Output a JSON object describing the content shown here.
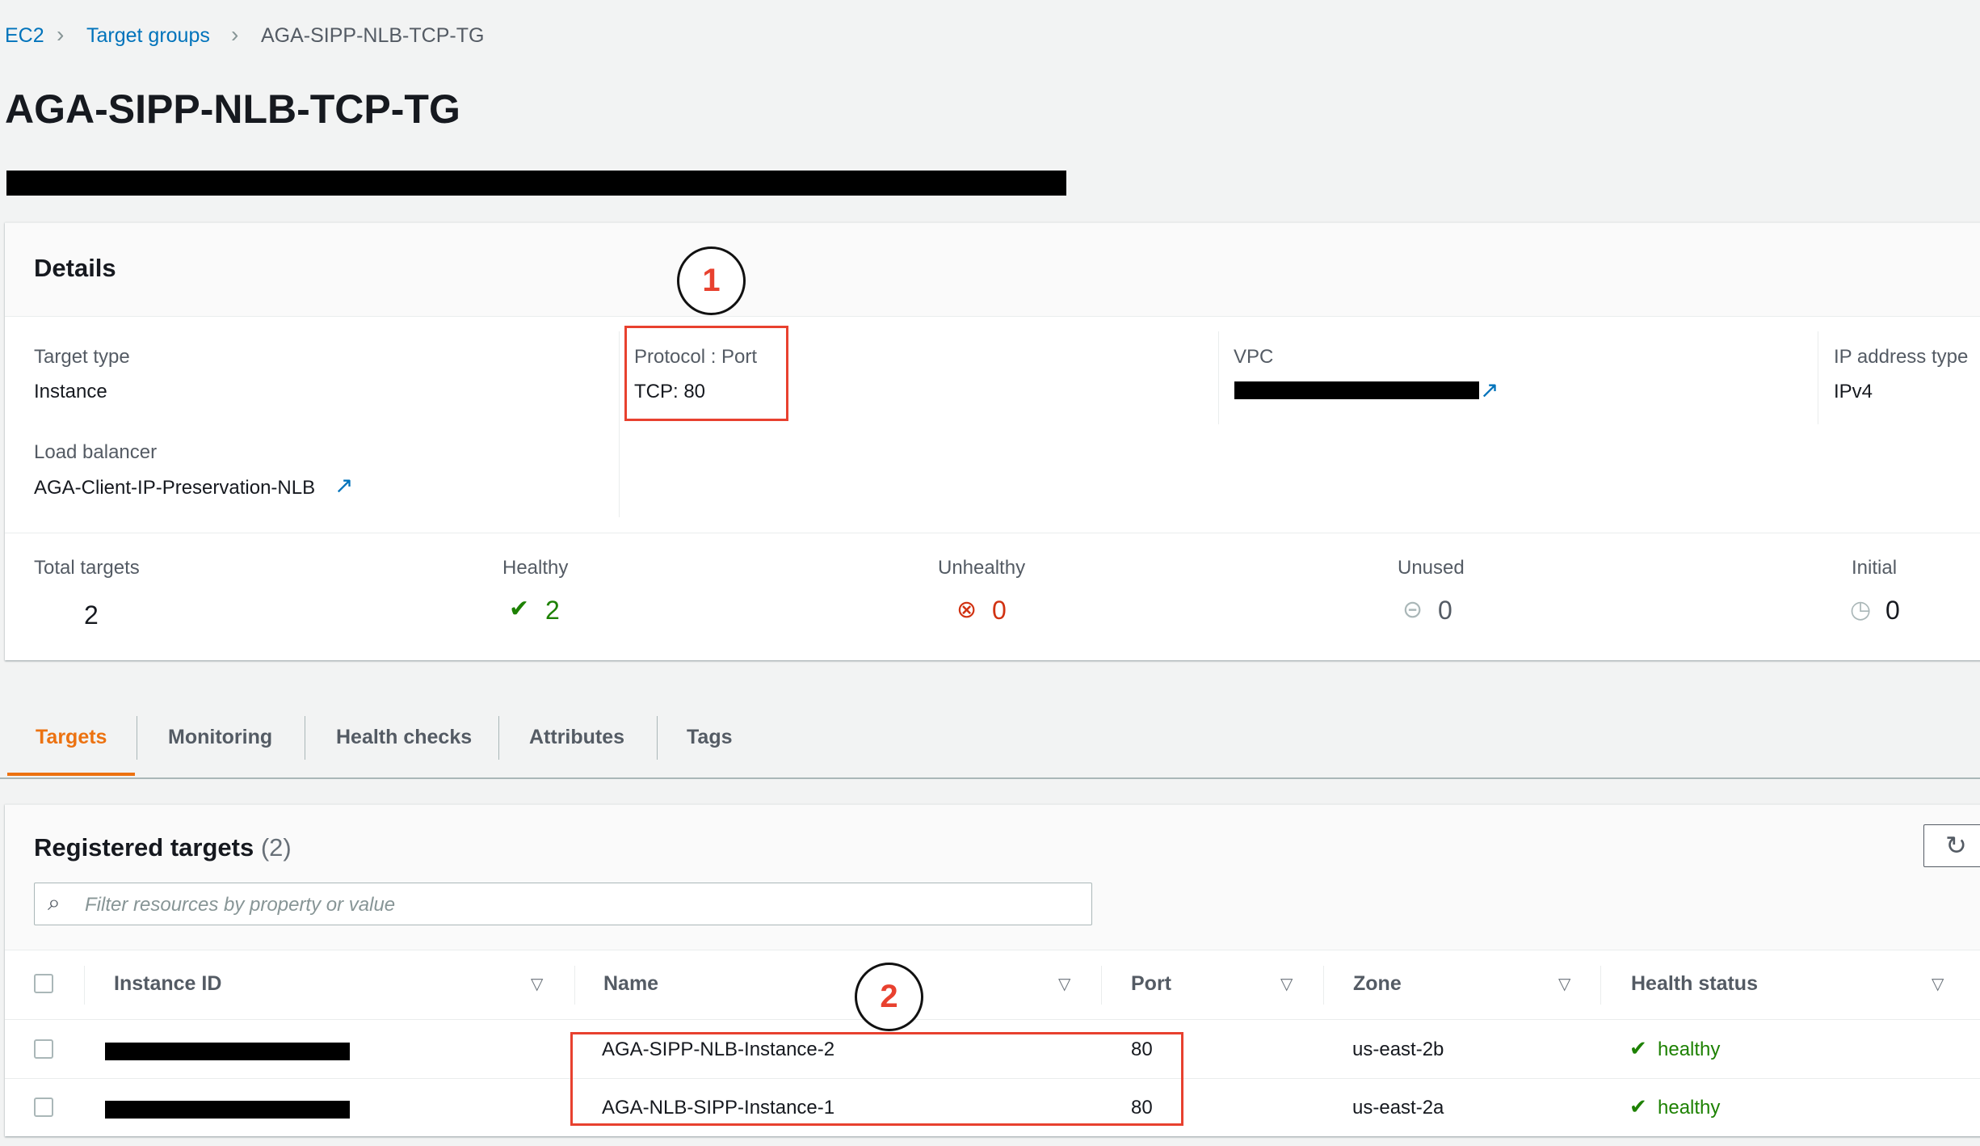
{
  "breadcrumb": {
    "items": [
      "EC2",
      "Target groups",
      "AGA-SIPP-NLB-TCP-TG"
    ]
  },
  "page_title": "AGA-SIPP-NLB-TCP-TG",
  "details": {
    "heading": "Details",
    "target_type": {
      "label": "Target type",
      "value": "Instance"
    },
    "protocol_port": {
      "label": "Protocol : Port",
      "value": "TCP: 80"
    },
    "vpc": {
      "label": "VPC"
    },
    "ip_address_type": {
      "label": "IP address type",
      "value": "IPv4"
    },
    "load_balancer": {
      "label": "Load balancer",
      "value": "AGA-Client-IP-Preservation-NLB"
    },
    "counts": {
      "total": {
        "label": "Total targets",
        "value": "2"
      },
      "healthy": {
        "label": "Healthy",
        "value": "2"
      },
      "unhealthy": {
        "label": "Unhealthy",
        "value": "0"
      },
      "unused": {
        "label": "Unused",
        "value": "0"
      },
      "initial": {
        "label": "Initial",
        "value": "0"
      }
    }
  },
  "tabs": [
    {
      "label": "Targets",
      "active": true
    },
    {
      "label": "Monitoring"
    },
    {
      "label": "Health checks"
    },
    {
      "label": "Attributes"
    },
    {
      "label": "Tags"
    }
  ],
  "registered": {
    "title": "Registered targets",
    "count": "(2)",
    "search_placeholder": "Filter resources by property or value",
    "columns": [
      "Instance ID",
      "Name",
      "Port",
      "Zone",
      "Health status"
    ],
    "rows": [
      {
        "name": "AGA-SIPP-NLB-Instance-2",
        "port": "80",
        "zone": "us-east-2b",
        "health": "healthy"
      },
      {
        "name": "AGA-NLB-SIPP-Instance-1",
        "port": "80",
        "zone": "us-east-2a",
        "health": "healthy"
      }
    ]
  },
  "annotations": [
    "1",
    "2"
  ],
  "colors": {
    "accent": "#ec7211",
    "link": "#0073bb",
    "healthy": "#1d8102",
    "unhealthy": "#d13212",
    "annotation": "#e8412f"
  }
}
